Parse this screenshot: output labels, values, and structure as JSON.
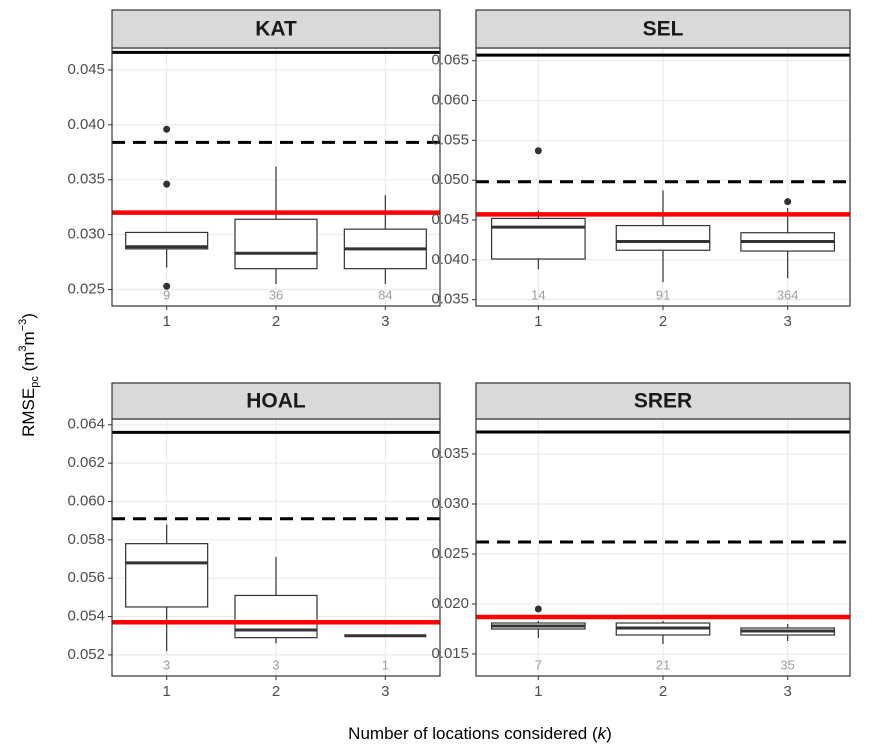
{
  "chart_data": [
    {
      "type": "box",
      "title": "KAT",
      "categories": [
        "1",
        "2",
        "3"
      ],
      "ylim": [
        0.0235,
        0.047
      ],
      "yticks": [
        0.025,
        {
          "value": 0.03,
          "label": "0.030"
        },
        0.035,
        {
          "value": 0.04,
          "label": "0.040"
        },
        0.045
      ],
      "boxes": [
        {
          "whisker_low": 0.027,
          "q1": 0.0287,
          "median": 0.0289,
          "q3": 0.0302,
          "whisker_high": 0.0302,
          "outliers": [
            0.0396,
            0.0346,
            0.0253
          ],
          "n": 9
        },
        {
          "whisker_low": 0.0255,
          "q1": 0.0269,
          "median": 0.0283,
          "q3": 0.0314,
          "whisker_high": 0.0362,
          "outliers": [],
          "n": 36
        },
        {
          "whisker_low": 0.0255,
          "q1": 0.0269,
          "median": 0.0287,
          "q3": 0.0305,
          "whisker_high": 0.0336,
          "outliers": [],
          "n": 84
        }
      ],
      "hlines": [
        {
          "value": 0.0466,
          "color": "#000000",
          "style": "solid"
        },
        {
          "value": 0.0384,
          "color": "#000000",
          "style": "dashed"
        },
        {
          "value": 0.032,
          "color": "#ff0000",
          "style": "solid"
        }
      ],
      "grid": true
    },
    {
      "type": "box",
      "title": "SEL",
      "categories": [
        "1",
        "2",
        "3"
      ],
      "ylim": [
        0.0342,
        0.0666
      ],
      "yticks": [
        0.035,
        {
          "value": 0.04,
          "label": "0.040"
        },
        0.045,
        {
          "value": 0.05,
          "label": "0.050"
        },
        0.055,
        {
          "value": 0.06,
          "label": "0.060"
        },
        0.065
      ],
      "boxes": [
        {
          "whisker_low": 0.0388,
          "q1": 0.0401,
          "median": 0.0441,
          "q3": 0.0452,
          "whisker_high": 0.0462,
          "outliers": [
            0.0537
          ],
          "n": 14
        },
        {
          "whisker_low": 0.0372,
          "q1": 0.0412,
          "median": 0.0423,
          "q3": 0.0443,
          "whisker_high": 0.0487,
          "outliers": [],
          "n": 91
        },
        {
          "whisker_low": 0.0377,
          "q1": 0.0411,
          "median": 0.0423,
          "q3": 0.0434,
          "whisker_high": 0.0465,
          "outliers": [
            0.0473
          ],
          "n": 364
        }
      ],
      "hlines": [
        {
          "value": 0.0657,
          "color": "#000000",
          "style": "solid"
        },
        {
          "value": 0.0498,
          "color": "#000000",
          "style": "dashed"
        },
        {
          "value": 0.0457,
          "color": "#ff0000",
          "style": "solid"
        }
      ],
      "grid": true
    },
    {
      "type": "box",
      "title": "HOAL",
      "categories": [
        "1",
        "2",
        "3"
      ],
      "ylim": [
        0.0509,
        0.0643
      ],
      "yticks": [
        0.052,
        0.054,
        0.056,
        0.058,
        {
          "value": 0.06,
          "label": "0.060"
        },
        0.062,
        0.064
      ],
      "boxes": [
        {
          "whisker_low": 0.0522,
          "q1": 0.0545,
          "median": 0.0568,
          "q3": 0.0578,
          "whisker_high": 0.0588,
          "outliers": [],
          "n": 3
        },
        {
          "whisker_low": 0.0526,
          "q1": 0.0529,
          "median": 0.0533,
          "q3": 0.0551,
          "whisker_high": 0.0571,
          "outliers": [],
          "n": 3
        },
        {
          "whisker_low": 0.053,
          "q1": 0.053,
          "median": 0.053,
          "q3": 0.053,
          "whisker_high": 0.053,
          "outliers": [],
          "n": 1
        }
      ],
      "hlines": [
        {
          "value": 0.0636,
          "color": "#000000",
          "style": "solid"
        },
        {
          "value": 0.0591,
          "color": "#000000",
          "style": "dashed"
        },
        {
          "value": 0.0537,
          "color": "#ff0000",
          "style": "solid"
        }
      ],
      "grid": true
    },
    {
      "type": "box",
      "title": "SRER",
      "categories": [
        "1",
        "2",
        "3"
      ],
      "ylim": [
        0.0128,
        0.0385
      ],
      "yticks": [
        0.015,
        {
          "value": 0.02,
          "label": "0.020"
        },
        0.025,
        {
          "value": 0.03,
          "label": "0.030"
        },
        0.035
      ],
      "boxes": [
        {
          "whisker_low": 0.0166,
          "q1": 0.0175,
          "median": 0.0178,
          "q3": 0.0181,
          "whisker_high": 0.0183,
          "outliers": [
            0.0195
          ],
          "n": 7
        },
        {
          "whisker_low": 0.016,
          "q1": 0.0169,
          "median": 0.0176,
          "q3": 0.0181,
          "whisker_high": 0.0183,
          "outliers": [],
          "n": 21
        },
        {
          "whisker_low": 0.0163,
          "q1": 0.0169,
          "median": 0.0173,
          "q3": 0.0176,
          "whisker_high": 0.018,
          "outliers": [],
          "n": 35
        }
      ],
      "hlines": [
        {
          "value": 0.0372,
          "color": "#000000",
          "style": "solid"
        },
        {
          "value": 0.0262,
          "color": "#000000",
          "style": "dashed"
        },
        {
          "value": 0.0187,
          "color": "#ff0000",
          "style": "solid"
        }
      ],
      "grid": true
    }
  ],
  "x_label": {
    "text": "Number of locations considered (",
    "italic": "k",
    "close": ")"
  },
  "y_label": {
    "base": "RMSE",
    "sub": "pc",
    "open": " (m",
    "sup1": "3",
    "unit2": "m",
    "sup2": "−3",
    "close": ")"
  }
}
